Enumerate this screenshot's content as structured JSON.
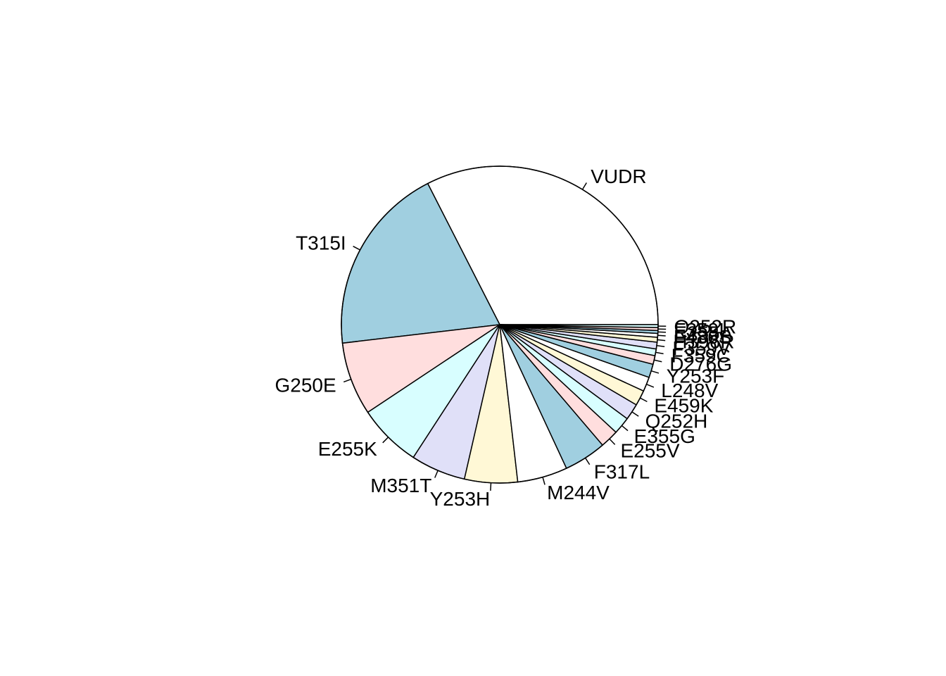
{
  "chart_data": {
    "type": "pie",
    "start_angle_deg": 0,
    "direction": "counterclockwise",
    "slices": [
      {
        "label": "VUDR",
        "value": 331,
        "color": "#ffffff"
      },
      {
        "label": "T315I",
        "value": 197,
        "color": "#a0cfe0"
      },
      {
        "label": "G250E",
        "value": 76,
        "color": "#ffdede"
      },
      {
        "label": "E255K",
        "value": 66,
        "color": "#d8feff"
      },
      {
        "label": "M351T",
        "value": 57,
        "color": "#e0e0f8"
      },
      {
        "label": "Y253H",
        "value": 55,
        "color": "#fff8d6"
      },
      {
        "label": "M244V",
        "value": 52,
        "color": "#ffffff"
      },
      {
        "label": "F317L",
        "value": 44,
        "color": "#a0cfe0"
      },
      {
        "label": "E255V",
        "value": 19,
        "color": "#ffdede"
      },
      {
        "label": "E355G",
        "value": 18,
        "color": "#d8feff"
      },
      {
        "label": "Q252H",
        "value": 17,
        "color": "#e0e0f8"
      },
      {
        "label": "E459K",
        "value": 16,
        "color": "#fff8d6"
      },
      {
        "label": "L248V",
        "value": 15,
        "color": "#ffffff"
      },
      {
        "label": "Y253F",
        "value": 14,
        "color": "#a0cfe0"
      },
      {
        "label": "D276G",
        "value": 9,
        "color": "#ffdede"
      },
      {
        "label": "F359C",
        "value": 7,
        "color": "#d8feff"
      },
      {
        "label": "F359V",
        "value": 7,
        "color": "#e0e0f8"
      },
      {
        "label": "H396R",
        "value": 5,
        "color": "#fff8d6"
      },
      {
        "label": "F486S",
        "value": 4,
        "color": "#ffffff"
      },
      {
        "label": "E255A",
        "value": 3,
        "color": "#a0cfe0"
      },
      {
        "label": "F359I",
        "value": 3,
        "color": "#ffdede"
      },
      {
        "label": "Q252R",
        "value": 3,
        "color": "#d8feff"
      }
    ],
    "border_color": "#000000"
  }
}
